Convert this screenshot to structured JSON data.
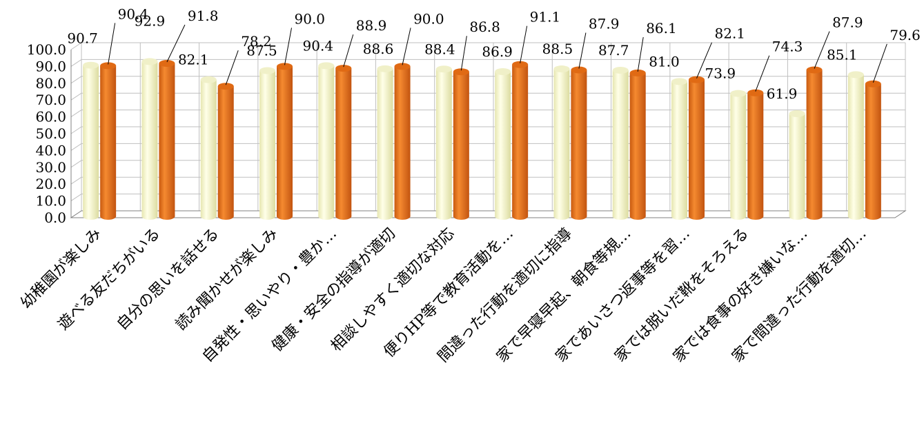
{
  "chart_data": {
    "type": "bar",
    "categories": [
      "幼稚園が楽しみ",
      "遊べる友だちがいる",
      "自分の思いを話せる",
      "読み聞かせが楽しみ",
      "自発性・思いやり・豊か…",
      "健康・安全の指導が適切",
      "相談しやすく適切な対応",
      "便りHP等で教育活動を…",
      "間違った行動を適切に指導",
      "家で早寝早起、朝食等規…",
      "家であいさつ返事等を習…",
      "家では脱いだ靴をそろえる",
      "家では食事の好き嫌いな…",
      "家で間違った行動を適切…"
    ],
    "series": [
      {
        "values": [
          90.7,
          92.9,
          82.1,
          87.5,
          90.4,
          88.6,
          88.4,
          86.9,
          88.5,
          87.7,
          81.0,
          73.9,
          61.9,
          85.1
        ]
      },
      {
        "values": [
          90.4,
          91.8,
          78.2,
          90.0,
          88.9,
          90.0,
          86.8,
          91.1,
          87.9,
          86.1,
          82.1,
          74.3,
          87.9,
          79.6
        ]
      }
    ],
    "ylim": [
      0,
      100
    ],
    "y_ticks": [
      "0.0",
      "10.0",
      "20.0",
      "30.0",
      "40.0",
      "50.0",
      "60.0",
      "70.0",
      "80.0",
      "90.0",
      "100.0"
    ],
    "grid": true,
    "legend": "none",
    "colors": {
      "series1": "#ffffcc",
      "series1_dark": "#c8c88a",
      "series2": "#f07a1e",
      "series2_dark": "#a84a08",
      "grid": "#bfbfbf",
      "axis": "#808080",
      "leader": "#000000"
    }
  }
}
